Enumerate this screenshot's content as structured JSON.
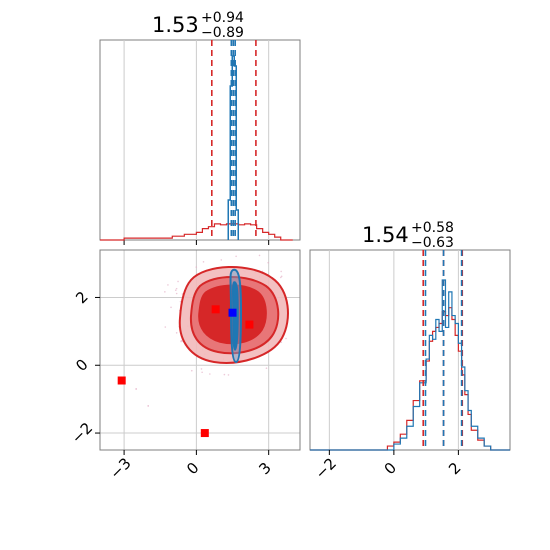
{
  "colors": {
    "red": "#d62728",
    "blue": "#1f77b4",
    "marker_blue": "#0000ff",
    "marker_red": "#ff0000",
    "grid": "#cccccc",
    "frame": "#7f7f7f"
  },
  "chart_data": [
    {
      "type": "histogram",
      "panel": "top-left (parameter 1 marginal)",
      "title_main": "1.53",
      "title_sup": "+0.94",
      "title_sub": "−0.89",
      "xlim": [
        -4,
        4.3
      ],
      "grid": true,
      "series": [
        {
          "color": "#d62728",
          "quantiles": [
            0.64,
            1.53,
            2.47
          ],
          "bins": [
            -4.0,
            -3.0,
            -2.0,
            -1.0,
            -0.5,
            0.0,
            0.25,
            0.5,
            0.75,
            1.0,
            1.25,
            1.5,
            1.75,
            2.0,
            2.25,
            2.5,
            2.75,
            3.0,
            3.25,
            3.5,
            4.0
          ],
          "counts": [
            0,
            0.01,
            0.01,
            0.02,
            0.03,
            0.04,
            0.06,
            0.07,
            0.085,
            0.08,
            0.085,
            0.085,
            0.08,
            0.085,
            0.08,
            0.06,
            0.04,
            0.03,
            0.015,
            0.0
          ]
        },
        {
          "color": "#1f77b4",
          "quantiles": [
            1.45,
            1.53,
            1.61
          ],
          "center": 1.53,
          "peak_fraction": 0.92
        }
      ]
    },
    {
      "type": "contour-scatter",
      "panel": "bottom-left (joint)",
      "xlim": [
        -4,
        4.3
      ],
      "ylim": [
        -2.5,
        3.4
      ],
      "xticks": [
        "−3",
        "0",
        "3"
      ],
      "yticks": [
        "−2",
        "0",
        "2"
      ],
      "grid": true,
      "red_contour_center": [
        1.2,
        1.6
      ],
      "blue_contour_center": [
        1.55,
        1.55
      ],
      "markers": [
        {
          "x": 1.5,
          "y": 1.55,
          "color": "#0000ff"
        },
        {
          "x": 0.8,
          "y": 1.65,
          "color": "#ff0000"
        },
        {
          "x": 2.2,
          "y": 1.2,
          "color": "#ff0000"
        },
        {
          "x": -3.1,
          "y": -0.45,
          "color": "#ff0000"
        },
        {
          "x": 0.35,
          "y": -2.0,
          "color": "#ff0000"
        }
      ]
    },
    {
      "type": "histogram",
      "panel": "bottom-right (parameter 2 marginal)",
      "title_main": "1.54",
      "title_sup": "+0.58",
      "title_sub": "−0.63",
      "xlim": [
        -2.6,
        3.6
      ],
      "xticks": [
        "−2",
        "0",
        "2"
      ],
      "grid": true,
      "series": [
        {
          "color": "#d62728",
          "quantiles": [
            0.91,
            1.54,
            2.12
          ],
          "bins": [
            -2.6,
            -0.2,
            0.0,
            0.2,
            0.4,
            0.6,
            0.8,
            1.0,
            1.1,
            1.2,
            1.3,
            1.4,
            1.5,
            1.6,
            1.7,
            1.8,
            1.9,
            2.0,
            2.1,
            2.2,
            2.3,
            2.4,
            2.6,
            2.8,
            3.0,
            3.6
          ],
          "counts": [
            0,
            0.02,
            0.04,
            0.08,
            0.15,
            0.25,
            0.35,
            0.45,
            0.55,
            0.6,
            0.62,
            0.64,
            0.7,
            0.68,
            0.72,
            0.66,
            0.58,
            0.5,
            0.38,
            0.28,
            0.18,
            0.1,
            0.05,
            0.02,
            0.0
          ]
        },
        {
          "color": "#1f77b4",
          "quantiles": [
            0.98,
            1.54,
            2.1
          ],
          "bins": [
            -2.6,
            -0.2,
            0.0,
            0.2,
            0.4,
            0.6,
            0.8,
            1.0,
            1.1,
            1.2,
            1.3,
            1.4,
            1.5,
            1.6,
            1.7,
            1.8,
            1.9,
            2.0,
            2.1,
            2.2,
            2.3,
            2.4,
            2.6,
            2.8,
            3.0,
            3.6
          ],
          "counts": [
            0,
            0.0,
            0.03,
            0.06,
            0.12,
            0.22,
            0.34,
            0.46,
            0.58,
            0.56,
            0.66,
            0.6,
            0.86,
            0.62,
            0.8,
            0.68,
            0.64,
            0.54,
            0.42,
            0.3,
            0.2,
            0.12,
            0.06,
            0.02,
            0.0
          ]
        }
      ]
    }
  ]
}
